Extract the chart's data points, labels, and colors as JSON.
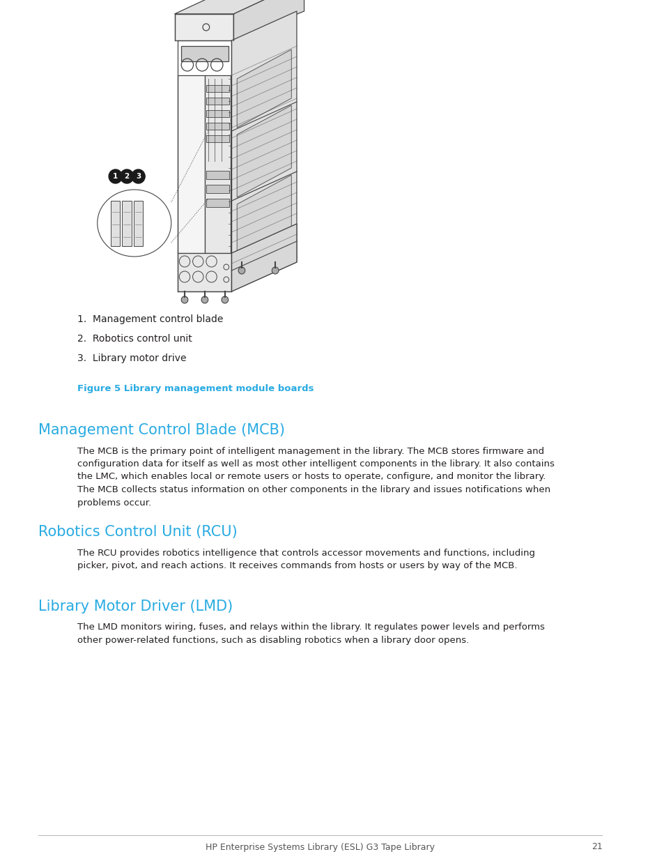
{
  "bg_color": "#ffffff",
  "cyan_color": "#29ABE2",
  "dark_color": "#231f20",
  "gray_color": "#555555",
  "list_items": [
    "1.  Management control blade",
    "2.  Robotics control unit",
    "3.  Library motor drive"
  ],
  "figure_caption_bold": "Figure 5 ",
  "figure_caption_rest": "Library management module boards",
  "sections": [
    {
      "title": "Management Control Blade (MCB)",
      "body": "The MCB is the primary point of intelligent management in the library. The MCB stores firmware and configuration data for itself as well as most other intelligent components in the library. It also contains the LMC, which enables local or remote users or hosts to operate, configure, and monitor the library. The MCB collects status information on other components in the library and issues notifications when problems occur."
    },
    {
      "title": "Robotics Control Unit (RCU)",
      "body": "The RCU provides robotics intelligence that controls accessor movements and functions, including picker, pivot, and reach actions. It receives commands from hosts or users by way of the MCB."
    },
    {
      "title": "Library Motor Driver (LMD)",
      "body": "The LMD monitors wiring, fuses, and relays within the library. It regulates power levels and performs other power-related functions, such as disabling robotics when a library door opens."
    }
  ],
  "footer_text": "HP Enterprise Systems Library (ESL) G3 Tape Library",
  "page_number": "21",
  "col": "#444444",
  "col_light": "#aaaaaa",
  "col_face": "#f2f2f2",
  "col_dark_face": "#d8d8d8",
  "col_right_face": "#e0e0e0"
}
